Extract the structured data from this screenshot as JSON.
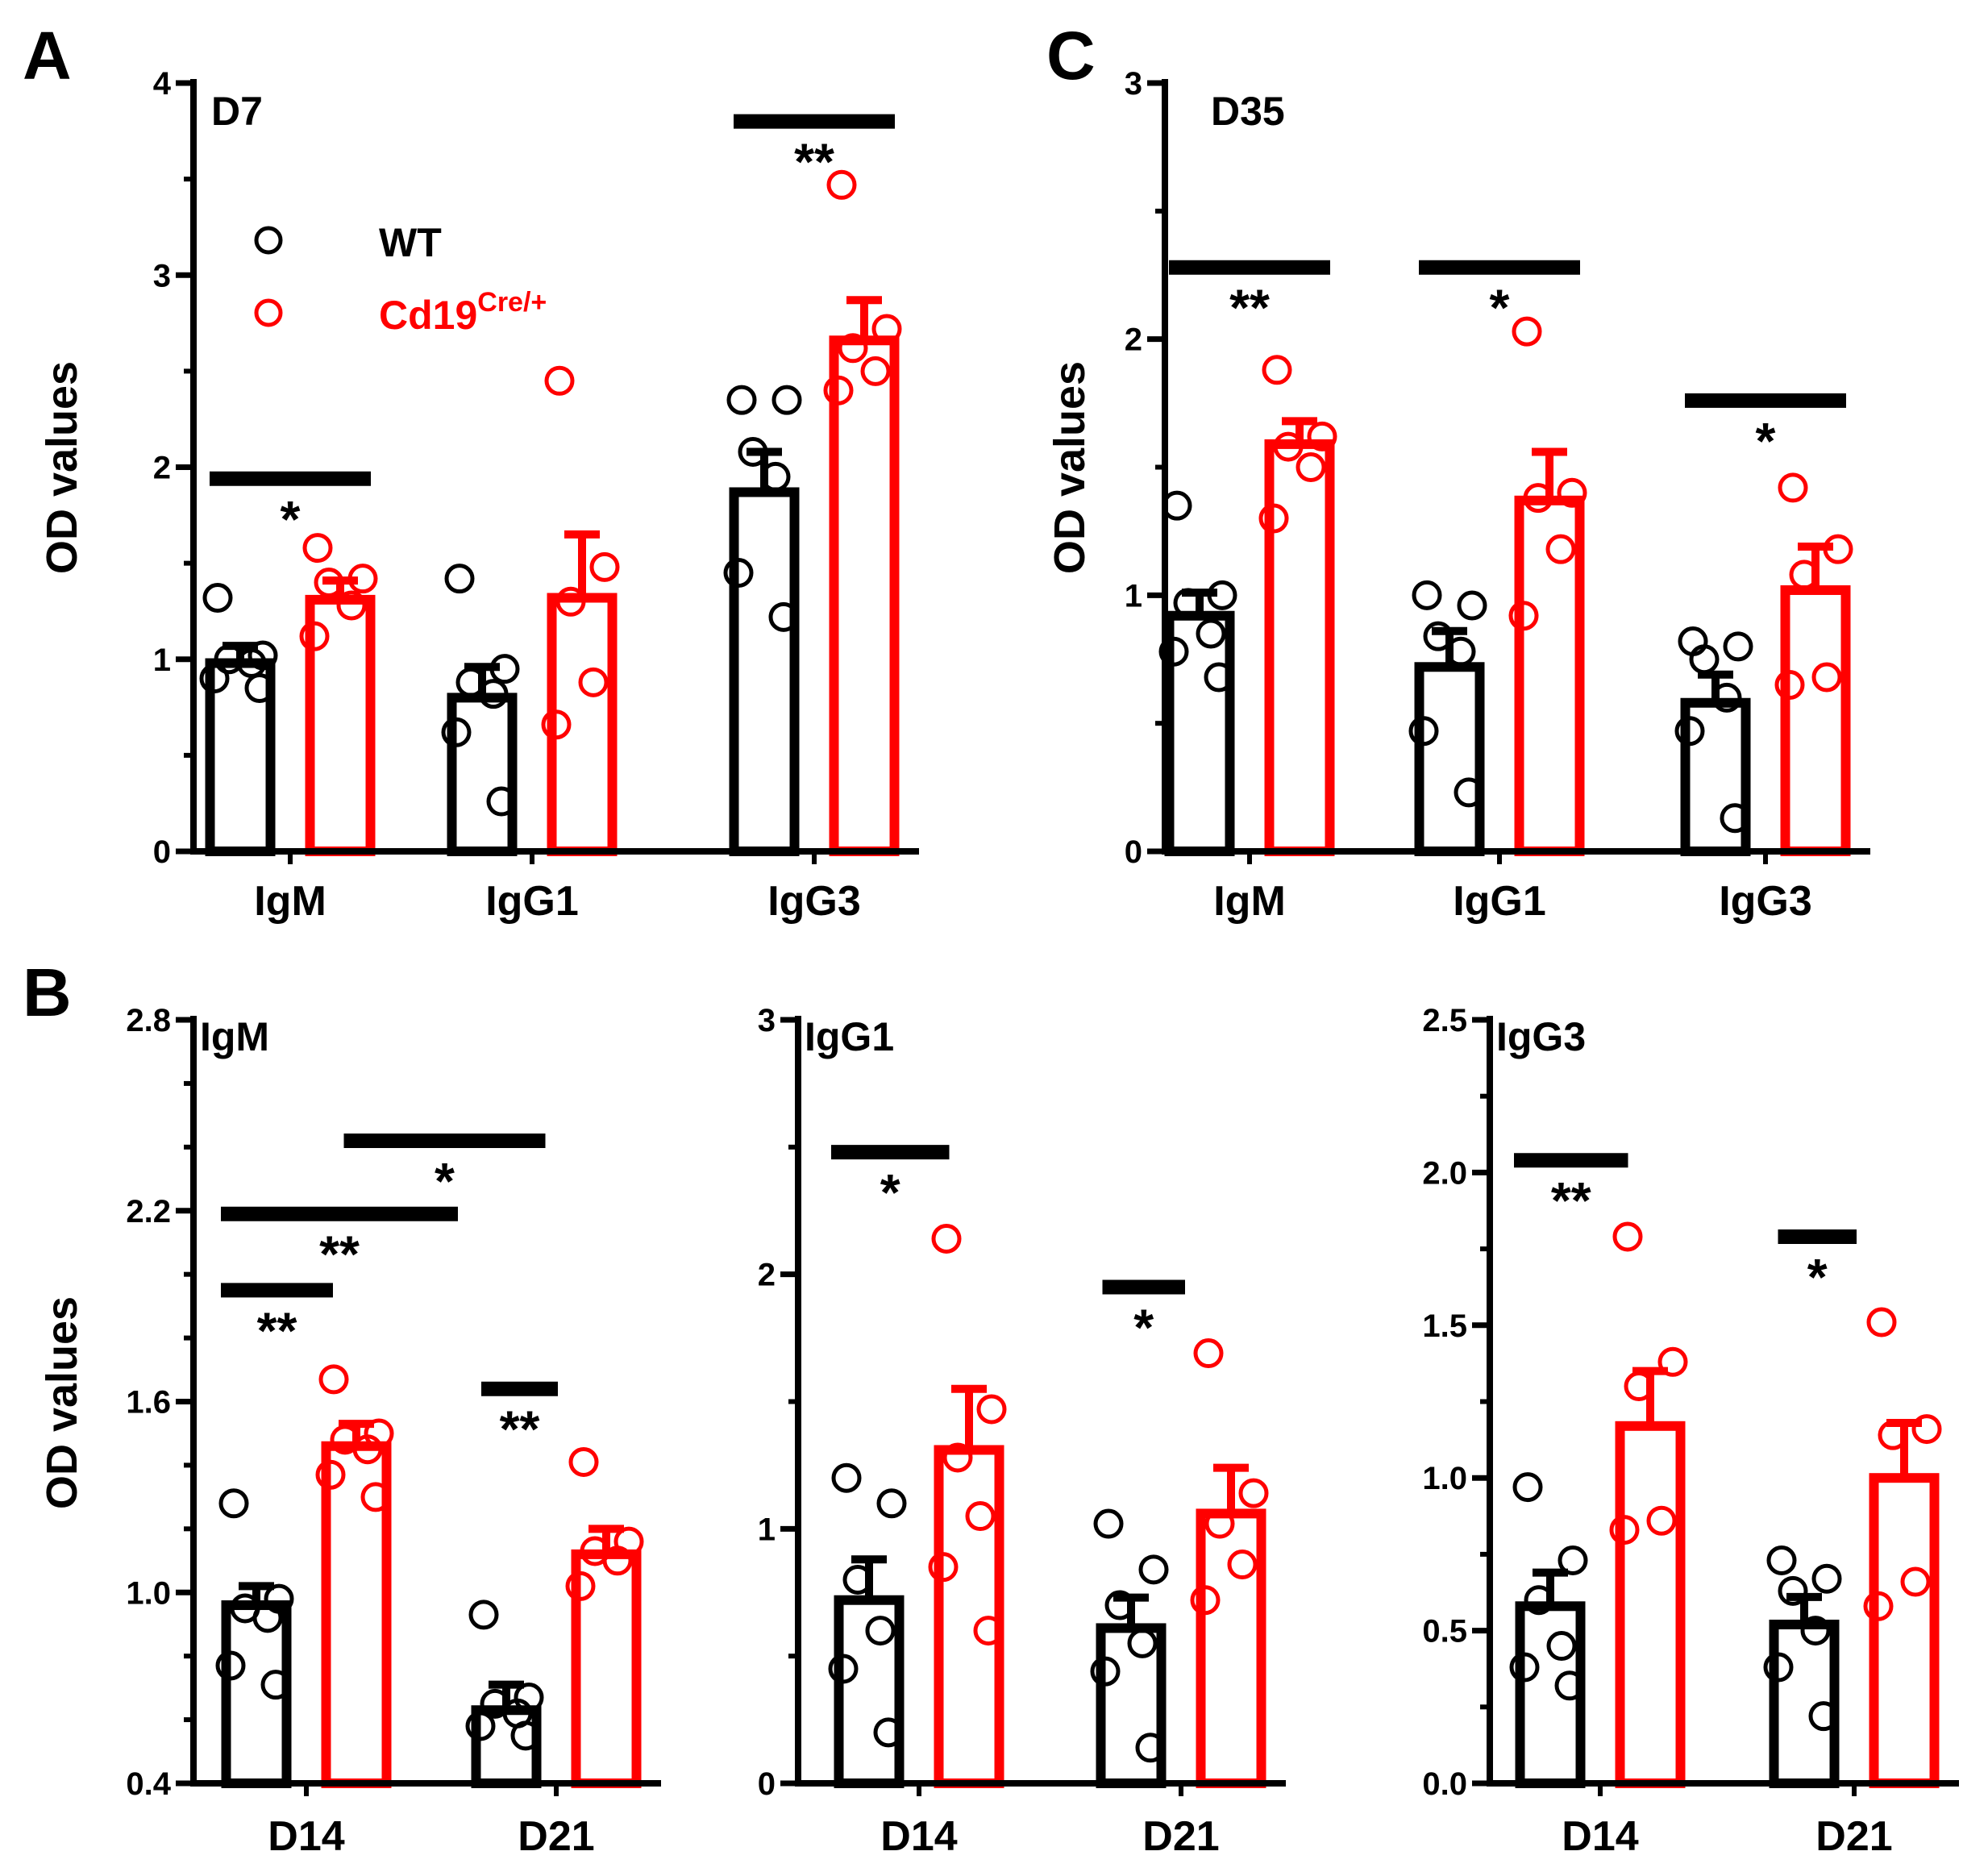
{
  "figure": {
    "legend": {
      "wt_label": "WT",
      "cre_label_main": "Cd19",
      "cre_label_sup": "Cre/+"
    },
    "colors": {
      "wt": "#000000",
      "cre": "#ff0000"
    }
  },
  "chart_data": [
    {
      "id": "A",
      "panel_label": "A",
      "type": "bar",
      "title": "D7",
      "ylabel": "OD values",
      "categories": [
        "IgM",
        "IgG1",
        "IgG3"
      ],
      "ylim": [
        0,
        4
      ],
      "ytick_values": [
        0,
        1,
        2,
        3,
        4
      ],
      "ytick_labels": [
        "0",
        "1",
        "2",
        "3",
        "4"
      ],
      "minor_ticks": 1,
      "series": [
        {
          "name": "WT",
          "values": [
            0.98,
            0.8,
            1.87
          ],
          "sem": [
            0.09,
            0.16,
            0.21
          ],
          "points": [
            [
              1.32,
              1.02,
              1.0,
              0.98,
              0.9,
              0.85
            ],
            [
              1.42,
              0.95,
              0.88,
              0.82,
              0.62,
              0.26
            ],
            [
              2.35,
              2.35,
              2.08,
              1.95,
              1.45,
              1.22
            ]
          ]
        },
        {
          "name": "Cd19Cre/+",
          "values": [
            1.31,
            1.32,
            2.66
          ],
          "sem": [
            0.1,
            0.33,
            0.21
          ],
          "points": [
            [
              1.58,
              1.42,
              1.4,
              1.28,
              1.12
            ],
            [
              2.45,
              1.48,
              1.3,
              0.88,
              0.66
            ],
            [
              3.47,
              2.72,
              2.62,
              2.5,
              2.4
            ]
          ]
        }
      ],
      "significance": [
        {
          "group": 0,
          "label": "*",
          "y": 1.94
        },
        {
          "group": 2,
          "label": "**",
          "y": 3.8
        }
      ]
    },
    {
      "id": "C",
      "panel_label": "C",
      "type": "bar",
      "title": "D35",
      "ylabel": "OD values",
      "categories": [
        "IgM",
        "IgG1",
        "IgG3"
      ],
      "ylim": [
        0,
        3
      ],
      "ytick_values": [
        0,
        1,
        2,
        3
      ],
      "ytick_labels": [
        "0",
        "1",
        "2",
        "3"
      ],
      "minor_ticks": 1,
      "series": [
        {
          "name": "WT",
          "values": [
            0.92,
            0.72,
            0.58
          ],
          "sem": [
            0.09,
            0.14,
            0.11
          ],
          "points": [
            [
              1.35,
              1.0,
              0.97,
              0.85,
              0.78,
              0.68
            ],
            [
              1.0,
              0.96,
              0.84,
              0.78,
              0.47,
              0.23
            ],
            [
              0.82,
              0.8,
              0.75,
              0.6,
              0.47,
              0.13
            ]
          ]
        },
        {
          "name": "Cd19Cre/+",
          "values": [
            1.59,
            1.37,
            1.02
          ],
          "sem": [
            0.09,
            0.19,
            0.17
          ],
          "points": [
            [
              1.88,
              1.62,
              1.58,
              1.5,
              1.3
            ],
            [
              2.03,
              1.4,
              1.38,
              1.18,
              0.92
            ],
            [
              1.42,
              1.18,
              1.08,
              0.68,
              0.65
            ]
          ]
        }
      ],
      "significance": [
        {
          "group": 0,
          "label": "**",
          "y": 2.28
        },
        {
          "group": 1,
          "label": "*",
          "y": 2.28
        },
        {
          "group": 2,
          "label": "*",
          "y": 1.76
        }
      ]
    },
    {
      "id": "B-IgM",
      "panel_label": "B",
      "type": "bar",
      "title": "IgM",
      "ylabel": "OD values",
      "categories": [
        "D14",
        "D21"
      ],
      "ylim": [
        0.4,
        2.8
      ],
      "ytick_values": [
        0.4,
        1.0,
        1.6,
        2.2,
        2.8
      ],
      "ytick_labels": [
        "0.4",
        "1.0",
        "1.6",
        "2.2",
        "2.8"
      ],
      "minor_ticks": 2,
      "series": [
        {
          "name": "WT",
          "values": [
            0.96,
            0.63
          ],
          "sem": [
            0.06,
            0.08
          ],
          "points": [
            [
              1.28,
              0.98,
              0.95,
              0.92,
              0.77,
              0.71
            ],
            [
              0.93,
              0.67,
              0.65,
              0.62,
              0.58,
              0.55
            ]
          ]
        },
        {
          "name": "Cd19Cre/+",
          "values": [
            1.46,
            1.12
          ],
          "sem": [
            0.07,
            0.08
          ],
          "points": [
            [
              1.67,
              1.5,
              1.48,
              1.45,
              1.37,
              1.3
            ],
            [
              1.41,
              1.16,
              1.13,
              1.1,
              1.02
            ]
          ]
        }
      ],
      "significance": [
        {
          "groups": [
            0,
            0
          ],
          "x1": -0.4,
          "x2": 0.6,
          "label": "**",
          "y": 1.95
        },
        {
          "groups": [
            0,
            1
          ],
          "x1": -0.4,
          "x2": 1.6,
          "label": "**",
          "y": 2.19
        },
        {
          "groups": [
            0,
            1
          ],
          "x1": 0.3,
          "x2": 2.3,
          "label": "*",
          "y": 2.42
        },
        {
          "groups": [
            1,
            1
          ],
          "x1": 1.4,
          "x2": 2.4,
          "label": "**",
          "y": 1.64
        }
      ]
    },
    {
      "id": "B-IgG1",
      "panel_label": "",
      "type": "bar",
      "title": "IgG1",
      "ylabel": "",
      "categories": [
        "D14",
        "D21"
      ],
      "ylim": [
        0,
        3
      ],
      "ytick_values": [
        0,
        1,
        2,
        3
      ],
      "ytick_labels": [
        "0",
        "1",
        "2",
        "3"
      ],
      "minor_ticks": 1,
      "series": [
        {
          "name": "WT",
          "values": [
            0.72,
            0.61
          ],
          "sem": [
            0.16,
            0.12
          ],
          "points": [
            [
              1.2,
              1.1,
              0.8,
              0.6,
              0.45,
              0.2
            ],
            [
              1.02,
              0.84,
              0.7,
              0.55,
              0.44,
              0.14
            ]
          ]
        },
        {
          "name": "Cd19Cre/+",
          "values": [
            1.31,
            1.06
          ],
          "sem": [
            0.24,
            0.18
          ],
          "points": [
            [
              2.14,
              1.47,
              1.28,
              1.05,
              0.85,
              0.6
            ],
            [
              1.69,
              1.14,
              1.02,
              0.86,
              0.72
            ]
          ]
        }
      ],
      "significance": [
        {
          "groups": [
            0,
            0
          ],
          "x1": -0.4,
          "x2": 0.6,
          "label": "*",
          "y": 2.48
        },
        {
          "groups": [
            1,
            1
          ],
          "x1": 1.4,
          "x2": 2.4,
          "label": "*",
          "y": 1.95
        }
      ]
    },
    {
      "id": "B-IgG3",
      "panel_label": "",
      "type": "bar",
      "title": "IgG3",
      "ylabel": "",
      "categories": [
        "D14",
        "D21"
      ],
      "ylim": [
        0,
        2.5
      ],
      "ytick_values": [
        0,
        0.5,
        1.0,
        1.5,
        2.0,
        2.5
      ],
      "ytick_labels": [
        "0.0",
        "0.5",
        "1.0",
        "1.5",
        "2.0",
        "2.5"
      ],
      "minor_ticks": 1,
      "series": [
        {
          "name": "WT",
          "values": [
            0.58,
            0.52
          ],
          "sem": [
            0.11,
            0.09
          ],
          "points": [
            [
              0.97,
              0.73,
              0.6,
              0.45,
              0.38,
              0.32
            ],
            [
              0.73,
              0.67,
              0.63,
              0.5,
              0.38,
              0.22
            ]
          ]
        },
        {
          "name": "Cd19Cre/+",
          "values": [
            1.17,
            1.0
          ],
          "sem": [
            0.18,
            0.18
          ],
          "points": [
            [
              1.79,
              1.38,
              1.3,
              0.86,
              0.83
            ],
            [
              1.51,
              1.16,
              1.14,
              0.66,
              0.58
            ]
          ]
        }
      ],
      "significance": [
        {
          "groups": [
            0,
            0
          ],
          "x1": -0.4,
          "x2": 0.6,
          "label": "**",
          "y": 2.04
        },
        {
          "groups": [
            1,
            1
          ],
          "x1": 1.4,
          "x2": 2.4,
          "label": "*",
          "y": 1.79
        }
      ]
    }
  ]
}
